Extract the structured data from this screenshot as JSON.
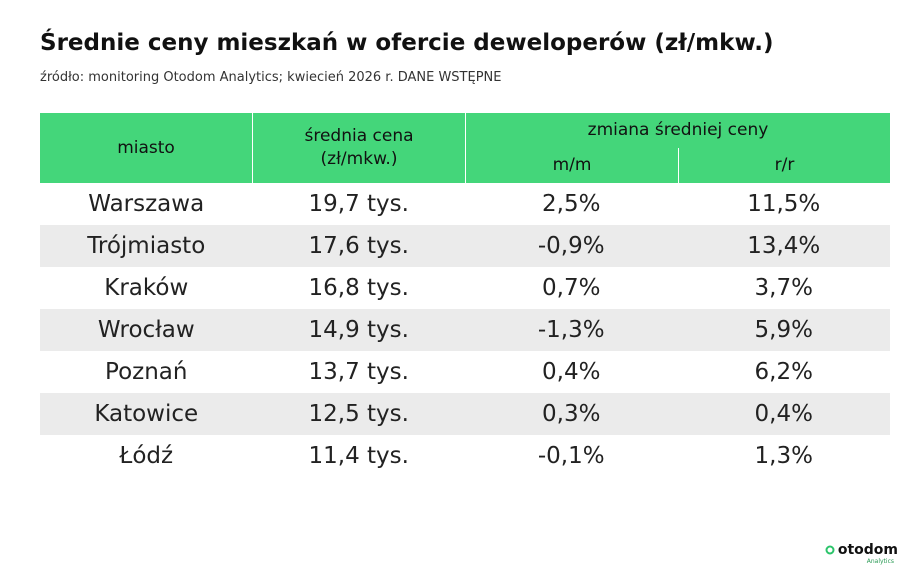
{
  "header": {
    "title": "Średnie ceny mieszkań w ofercie deweloperów (zł/mkw.)",
    "subtitle": "źródło: monitoring Otodom Analytics; kwiecień 2026 r. DANE WSTĘPNE"
  },
  "table": {
    "headers": {
      "city": "miasto",
      "price": [
        "średnia cena",
        "(zł/mkw.)"
      ],
      "change": "zmiana średniej ceny",
      "mm": "m/m",
      "rr": "r/r"
    },
    "rows": [
      [
        "Warszawa",
        "19,7 tys.",
        "2,5%",
        "11,5%"
      ],
      [
        "Trójmiasto",
        "17,6 tys.",
        "-0,9%",
        "13,4%"
      ],
      [
        "Kraków",
        "16,8 tys.",
        "0,7%",
        "3,7%"
      ],
      [
        "Wrocław",
        "14,9 tys.",
        "-1,3%",
        "5,9%"
      ],
      [
        "Poznań",
        "13,7 tys.",
        "0,4%",
        "6,2%"
      ],
      [
        "Katowice",
        "12,5 tys.",
        "0,3%",
        "0,4%"
      ],
      [
        "Łódź",
        "11,4 tys.",
        "-0,1%",
        "1,3%"
      ]
    ]
  },
  "footer": {
    "logo": "otodom",
    "logo_sub": "Analytics"
  }
}
